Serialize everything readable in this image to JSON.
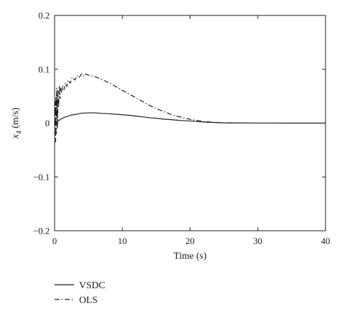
{
  "chart_data": {
    "type": "line",
    "xlabel": "Time (s)",
    "ylabel_main": "x",
    "ylabel_sub": "4",
    "ylabel_unit": " (m/s)",
    "xlim": [
      0,
      40
    ],
    "ylim": [
      -0.2,
      0.2
    ],
    "xticks": [
      0,
      10,
      20,
      30,
      40
    ],
    "yticks": [
      -0.2,
      -0.1,
      0,
      0.1,
      0.2
    ],
    "xtick_labels": [
      "0",
      "10",
      "20",
      "30",
      "40"
    ],
    "ytick_labels": [
      "−0.2",
      "−0.1",
      "0",
      "0.1",
      "0.2"
    ],
    "grid": false,
    "legend_position": "below-left",
    "series": [
      {
        "name": "VSDC",
        "line_style": "solid",
        "color": "#1a1a1a",
        "x": [
          0,
          0.1,
          0.2,
          0.3,
          0.5,
          0.8,
          1,
          1.5,
          2,
          2.5,
          3,
          3.5,
          4,
          5,
          6,
          7,
          8,
          9,
          10,
          11,
          12,
          13,
          14,
          15,
          16,
          17,
          18,
          19,
          20,
          21,
          22,
          23,
          24,
          25,
          26,
          30,
          35,
          40
        ],
        "y": [
          0,
          -0.004,
          0.005,
          -0.002,
          0.004,
          0.006,
          0.008,
          0.011,
          0.013,
          0.015,
          0.016,
          0.017,
          0.0185,
          0.019,
          0.019,
          0.018,
          0.0175,
          0.0165,
          0.0155,
          0.0145,
          0.013,
          0.0115,
          0.01,
          0.009,
          0.0075,
          0.0065,
          0.0055,
          0.0045,
          0.004,
          0.003,
          0.002,
          0.0015,
          0.001,
          0.0005,
          0.0003,
          0.0001,
          0,
          0
        ]
      },
      {
        "name": "OLS",
        "line_style": "dash-dot",
        "color": "#1a1a1a",
        "x": [
          0,
          0.1,
          0.15,
          0.2,
          0.25,
          0.3,
          0.35,
          0.4,
          0.45,
          0.5,
          0.6,
          0.7,
          0.8,
          0.9,
          1,
          1.2,
          1.4,
          1.6,
          1.8,
          2,
          2.3,
          2.6,
          3,
          3.3,
          3.6,
          4,
          4.3,
          4.6,
          5,
          5.5,
          6,
          7,
          8,
          9,
          10,
          11,
          12,
          13,
          14,
          15,
          16,
          17,
          18,
          19,
          20,
          21,
          22,
          23,
          24,
          25,
          26
        ],
        "y": [
          0,
          0.04,
          -0.035,
          0.05,
          -0.02,
          0.065,
          0.01,
          0.055,
          -0.01,
          0.06,
          0.03,
          0.07,
          0.045,
          0.065,
          0.055,
          0.07,
          0.062,
          0.075,
          0.068,
          0.08,
          0.074,
          0.085,
          0.08,
          0.088,
          0.084,
          0.092,
          0.087,
          0.091,
          0.089,
          0.088,
          0.086,
          0.081,
          0.075,
          0.068,
          0.061,
          0.054,
          0.047,
          0.04,
          0.033,
          0.027,
          0.022,
          0.017,
          0.013,
          0.01,
          0.007,
          0.005,
          0.003,
          0.002,
          0.001,
          0.0005,
          0
        ]
      }
    ]
  }
}
